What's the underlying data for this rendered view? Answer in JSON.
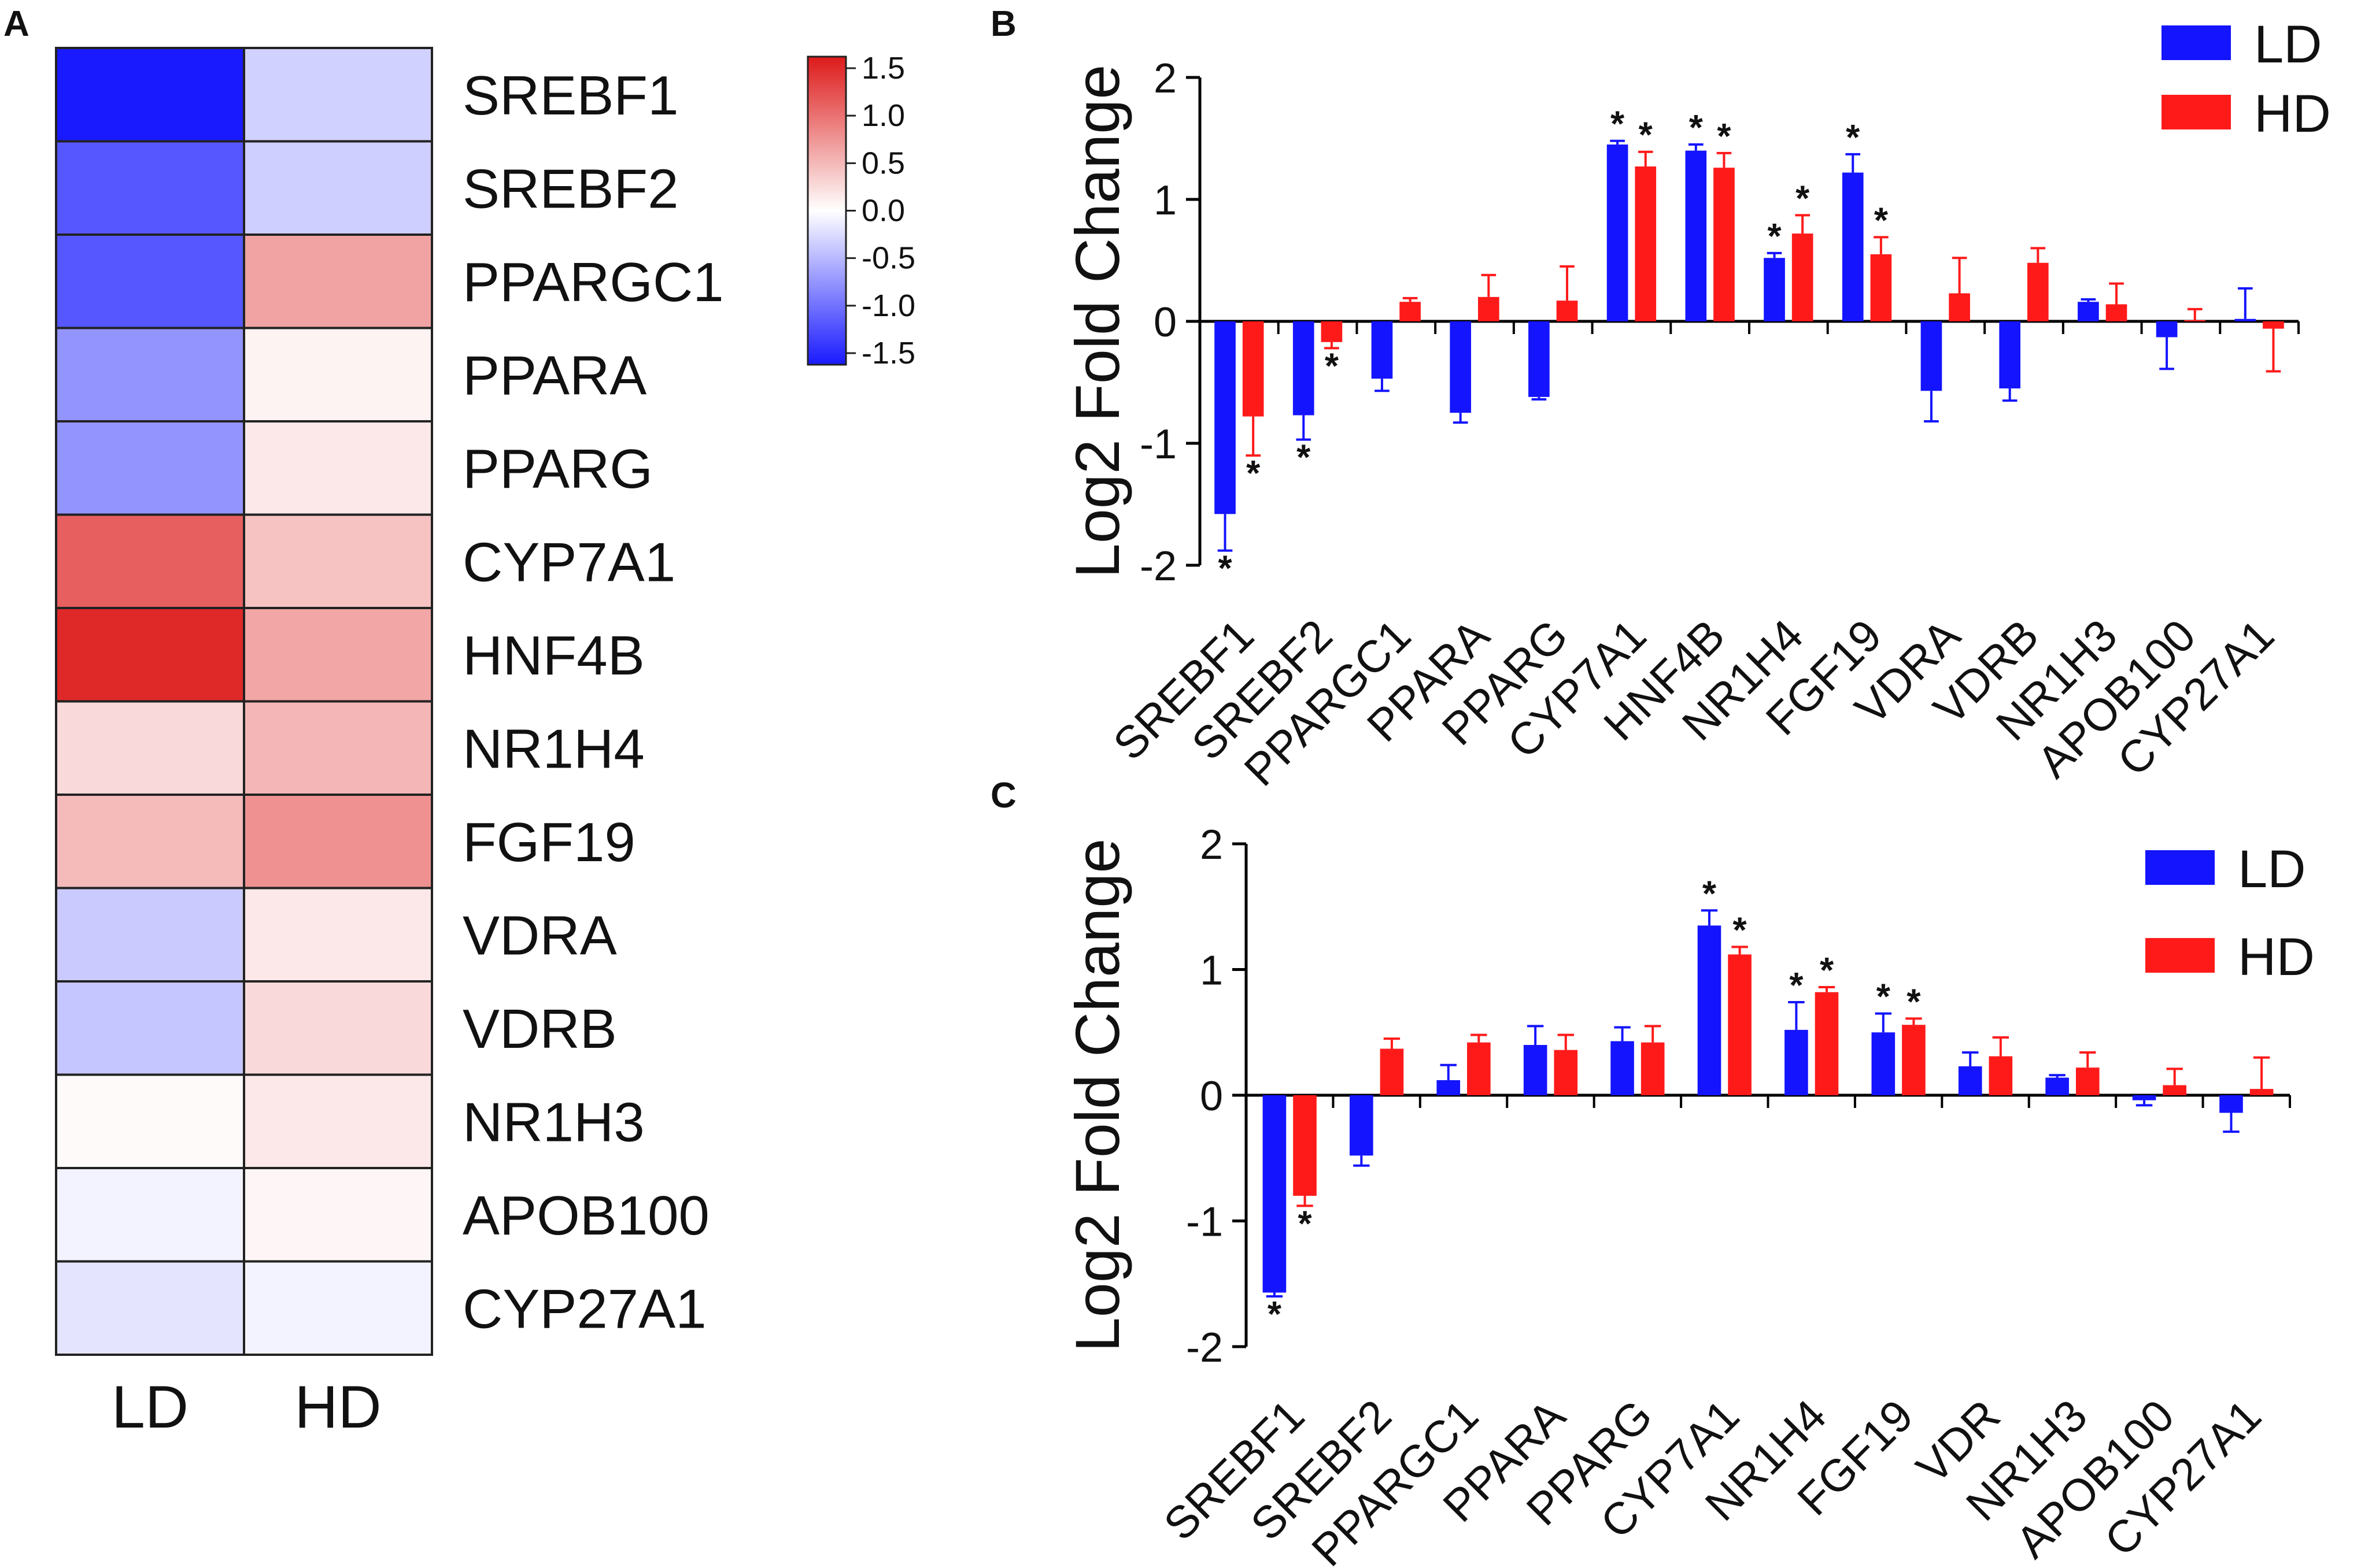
{
  "colors": {
    "ld": "#1414ff",
    "hd": "#ff1a1a",
    "axis": "#000000",
    "cell_border": "#222222"
  },
  "chart_data": [
    {
      "panel": "A",
      "type": "heatmap",
      "rows": [
        "SREBF1",
        "SREBF2",
        "PPARGC1",
        "PPARA",
        "PPARG",
        "CYP7A1",
        "HNF4B",
        "NR1H4",
        "FGF19",
        "VDRA",
        "VDRB",
        "NR1H3",
        "APOB100",
        "CYP27A1"
      ],
      "columns": [
        "LD",
        "HD"
      ],
      "values": [
        [
          -1.58,
          -0.3
        ],
        [
          -1.1,
          -0.32
        ],
        [
          -1.1,
          0.6
        ],
        [
          -0.7,
          0.08
        ],
        [
          -0.7,
          0.15
        ],
        [
          1.05,
          0.4
        ],
        [
          1.4,
          0.58
        ],
        [
          0.25,
          0.48
        ],
        [
          0.45,
          0.72
        ],
        [
          -0.35,
          0.15
        ],
        [
          -0.38,
          0.25
        ],
        [
          0.03,
          0.15
        ],
        [
          -0.08,
          0.06
        ],
        [
          -0.18,
          -0.08
        ]
      ],
      "colorbar": {
        "min": -1.5,
        "max": 1.5,
        "ticks": [
          "1.5",
          "1.0",
          "0.5",
          "0.0",
          "-0.5",
          "-1.0",
          "-1.5"
        ]
      }
    },
    {
      "panel": "B",
      "type": "bar",
      "ylabel": "Log2 Fold Change",
      "ylim": [
        -2,
        2
      ],
      "yticks": [
        "2",
        "1",
        "0",
        "-1",
        "-2"
      ],
      "legend": [
        "LD",
        "HD"
      ],
      "categories": [
        "SREBF1",
        "SREBF2",
        "PPARGC1",
        "PPARA",
        "PPARG",
        "CYP7A1",
        "HNF4B",
        "NR1H4",
        "FGF19",
        "VDRA",
        "VDRB",
        "NR1H3",
        "APOB100",
        "CYP27A1"
      ],
      "series": [
        {
          "name": "LD",
          "values": [
            -1.58,
            -0.77,
            -0.47,
            -0.75,
            -0.62,
            1.45,
            1.4,
            0.52,
            1.22,
            -0.57,
            -0.55,
            0.16,
            -0.13,
            0.02
          ],
          "errors": [
            0.3,
            0.2,
            0.1,
            0.08,
            0.02,
            0.03,
            0.05,
            0.04,
            0.15,
            0.25,
            0.1,
            0.02,
            0.26,
            0.25
          ],
          "sig": [
            "*",
            "*",
            "",
            "",
            "",
            "*",
            "*",
            "*",
            "*",
            "",
            "",
            "",
            "",
            ""
          ]
        },
        {
          "name": "HD",
          "values": [
            -0.78,
            -0.17,
            0.16,
            0.2,
            0.17,
            1.27,
            1.26,
            0.72,
            0.55,
            0.23,
            0.48,
            0.14,
            0.01,
            -0.06
          ],
          "errors": [
            0.32,
            0.05,
            0.03,
            0.18,
            0.28,
            0.12,
            0.12,
            0.15,
            0.14,
            0.29,
            0.12,
            0.17,
            0.09,
            0.35
          ],
          "sig": [
            "*",
            "*",
            "",
            "",
            "",
            "*",
            "*",
            "*",
            "*",
            "",
            "",
            "",
            "",
            ""
          ]
        }
      ]
    },
    {
      "panel": "C",
      "type": "bar",
      "ylabel": "Log2 Fold Change",
      "ylim": [
        -2,
        2
      ],
      "yticks": [
        "2",
        "1",
        "0",
        "-1",
        "-2"
      ],
      "legend": [
        "LD",
        "HD"
      ],
      "categories": [
        "SREBF1",
        "SREBF2",
        "PPARGC1",
        "PPARA",
        "PPARG",
        "CYP7A1",
        "NR1H4",
        "FGF19",
        "VDR",
        "NR1H3",
        "APOB100",
        "CYP27A1"
      ],
      "series": [
        {
          "name": "LD",
          "values": [
            -1.57,
            -0.48,
            0.12,
            0.4,
            0.43,
            1.35,
            0.52,
            0.5,
            0.23,
            0.14,
            -0.04,
            -0.14
          ],
          "errors": [
            0.03,
            0.08,
            0.12,
            0.15,
            0.11,
            0.12,
            0.22,
            0.15,
            0.11,
            0.02,
            0.04,
            0.15
          ],
          "sig": [
            "*",
            "",
            "",
            "",
            "",
            "*",
            "*",
            "*",
            "",
            "",
            "",
            ""
          ]
        },
        {
          "name": "HD",
          "values": [
            -0.8,
            0.37,
            0.42,
            0.36,
            0.42,
            1.12,
            0.82,
            0.56,
            0.31,
            0.22,
            0.08,
            0.05
          ],
          "errors": [
            0.08,
            0.08,
            0.06,
            0.12,
            0.13,
            0.06,
            0.04,
            0.05,
            0.15,
            0.12,
            0.13,
            0.25
          ],
          "sig": [
            "*",
            "",
            "",
            "",
            "",
            "*",
            "*",
            "*",
            "",
            "",
            "",
            ""
          ]
        }
      ]
    }
  ]
}
